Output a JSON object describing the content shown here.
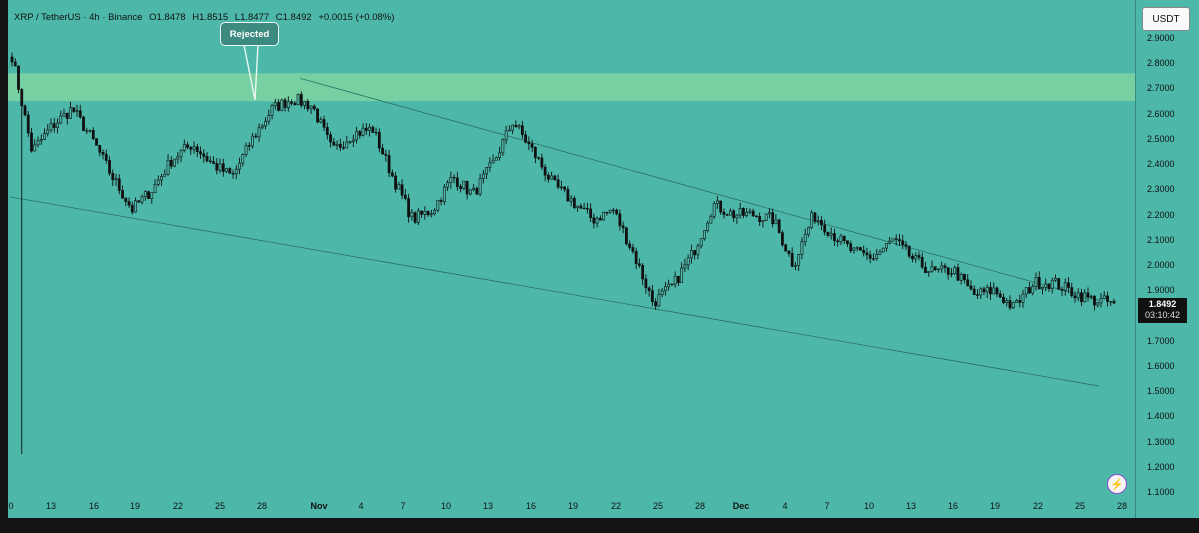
{
  "header": {
    "symbol": "XRP / TetherUS · 4h · Binance",
    "open": "O1.8478",
    "high": "H1.8515",
    "low": "L1.8477",
    "close": "C1.8492",
    "change": "+0.0015 (+0.08%)"
  },
  "currency_button": "USDT",
  "price_badge": {
    "price": "1.8492",
    "countdown": "03:10:42"
  },
  "annotation": {
    "text": "Rejected"
  },
  "colors": {
    "background": "#4db8aa",
    "resistance_zone": "#7fd3a0",
    "candle": "#111111",
    "trendline": "#2a6f67"
  },
  "icons": [
    "lightning-logo-icon"
  ],
  "chart_data": {
    "type": "candlestick",
    "pair": "XRP / TetherUS",
    "interval": "4h",
    "exchange": "Binance",
    "ylim": [
      1.1,
      2.95
    ],
    "y_ticks": [
      "2.9000",
      "2.8000",
      "2.7000",
      "2.6000",
      "2.5000",
      "2.4000",
      "2.3000",
      "2.2000",
      "2.1000",
      "2.0000",
      "1.9000",
      "1.7000",
      "1.6000",
      "1.5000",
      "1.4000",
      "1.3000",
      "1.2000",
      "1.1000"
    ],
    "x_ticks": [
      {
        "label": "0",
        "bold": false
      },
      {
        "label": "13",
        "bold": false
      },
      {
        "label": "16",
        "bold": false
      },
      {
        "label": "19",
        "bold": false
      },
      {
        "label": "22",
        "bold": false
      },
      {
        "label": "25",
        "bold": false
      },
      {
        "label": "28",
        "bold": false
      },
      {
        "label": "Nov",
        "bold": true
      },
      {
        "label": "4",
        "bold": false
      },
      {
        "label": "7",
        "bold": false
      },
      {
        "label": "10",
        "bold": false
      },
      {
        "label": "13",
        "bold": false
      },
      {
        "label": "16",
        "bold": false
      },
      {
        "label": "19",
        "bold": false
      },
      {
        "label": "22",
        "bold": false
      },
      {
        "label": "25",
        "bold": false
      },
      {
        "label": "28",
        "bold": false
      },
      {
        "label": "Dec",
        "bold": true
      },
      {
        "label": "4",
        "bold": false
      },
      {
        "label": "7",
        "bold": false
      },
      {
        "label": "10",
        "bold": false
      },
      {
        "label": "13",
        "bold": false
      },
      {
        "label": "16",
        "bold": false
      },
      {
        "label": "19",
        "bold": false
      },
      {
        "label": "22",
        "bold": false
      },
      {
        "label": "25",
        "bold": false
      },
      {
        "label": "28",
        "bold": false
      }
    ],
    "resistance_zone": [
      2.65,
      2.76
    ],
    "price_path": [
      2.83,
      2.45,
      2.55,
      2.62,
      2.5,
      2.35,
      2.22,
      2.3,
      2.42,
      2.48,
      2.4,
      2.35,
      2.5,
      2.62,
      2.66,
      2.63,
      2.45,
      2.52,
      2.54,
      2.35,
      2.18,
      2.22,
      2.35,
      2.28,
      2.4,
      2.57,
      2.45,
      2.32,
      2.25,
      2.18,
      2.22,
      2.05,
      1.85,
      1.92,
      2.05,
      2.24,
      2.2,
      2.2,
      2.18,
      2.0,
      2.2,
      2.12,
      2.05,
      2.03,
      2.1,
      2.02,
      1.97,
      1.98,
      1.88,
      1.9,
      1.83,
      1.93,
      1.93,
      1.89,
      1.86,
      1.85
    ],
    "current_price": 1.8492,
    "upper_trendline": [
      [
        2.74,
        0.262
      ],
      [
        1.86,
        0.983
      ]
    ],
    "lower_trendline": [
      [
        2.27,
        0.0
      ],
      [
        1.52,
        0.983
      ]
    ]
  }
}
